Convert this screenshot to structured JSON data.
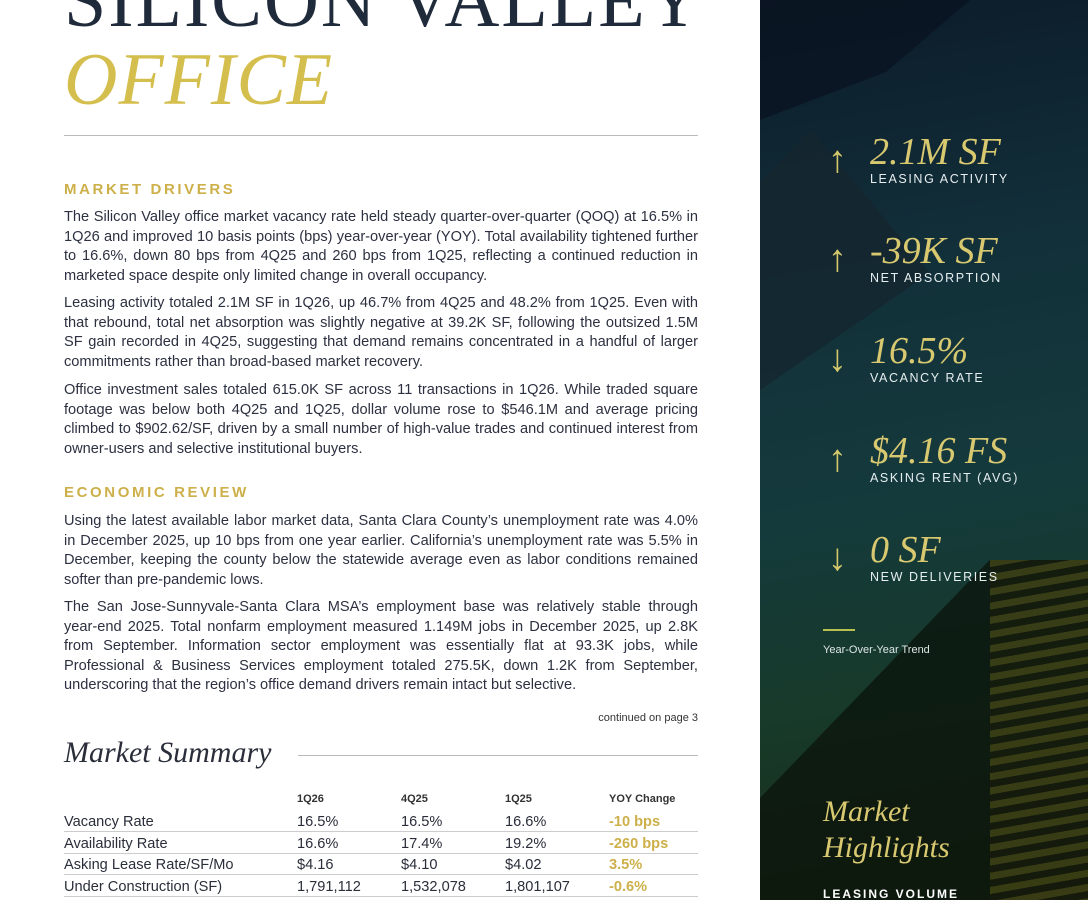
{
  "title": {
    "line1": "SILICON VALLEY",
    "line2": "OFFICE"
  },
  "sections": [
    {
      "heading": "MARKET DRIVERS",
      "paragraphs": [
        "The Silicon Valley office market vacancy rate held steady quarter-over-quarter (QOQ) at 16.5% in 1Q26 and improved 10 basis points (bps) year-over-year (YOY). Total availability tightened further to 16.6%, down 80 bps from 4Q25 and 260 bps from 1Q25, reflecting a continued reduction in marketed space despite only limited change in overall occupancy.",
        "Leasing activity totaled 2.1M SF in 1Q26, up 46.7% from 4Q25 and 48.2% from 1Q25. Even with that rebound, total net absorption was slightly negative at 39.2K SF, following the outsized 1.5M SF gain recorded in 4Q25, suggesting that demand remains concentrated in a handful of larger commitments rather than broad-based market recovery.",
        "Office investment sales totaled 615.0K SF across 11 transactions in 1Q26. While traded square footage was below both 4Q25 and 1Q25, dollar volume rose to $546.1M and average pricing climbed to $902.62/SF, driven by a small number of high-value trades and continued interest from owner-users and selective institutional buyers."
      ]
    },
    {
      "heading": "ECONOMIC REVIEW",
      "paragraphs": [
        "Using the latest available labor market data, Santa Clara County’s unemployment rate was 4.0% in December 2025, up 10 bps from one year earlier. California’s unemployment rate was 5.5% in December, keeping the county below the statewide average even as labor conditions remained softer than pre-pandemic lows.",
        "The San Jose-Sunnyvale-Santa Clara MSA’s employment base was relatively stable through year-end 2025. Total nonfarm employment measured 1.149M jobs in December 2025, up 2.8K from September. Information sector employment was essentially flat at 93.3K jobs, while Professional & Business Services employment totaled 275.5K, down 1.2K from September, underscoring that the region’s office demand drivers remain intact but selective."
      ]
    }
  ],
  "continued": "continued on page 3",
  "summary": {
    "title": "Market Summary",
    "headers": [
      "",
      "1Q26",
      "4Q25",
      "1Q25",
      "YOY Change"
    ],
    "rows": [
      [
        "Vacancy Rate",
        "16.5%",
        "16.5%",
        "16.6%",
        "-10 bps"
      ],
      [
        "Availability Rate",
        "16.6%",
        "17.4%",
        "19.2%",
        "-260 bps"
      ],
      [
        "Asking Lease Rate/SF/Mo",
        "$4.16",
        "$4.10",
        "$4.02",
        "3.5%"
      ],
      [
        "Under Construction (SF)",
        "1,791,112",
        "1,532,078",
        "1,801,107",
        "-0.6%"
      ]
    ]
  },
  "stats": [
    {
      "value": "2.1M SF",
      "label": "LEASING ACTIVITY",
      "trend": "up",
      "arrow": "↑"
    },
    {
      "value": "-39K SF",
      "label": "NET ABSORPTION",
      "trend": "up",
      "arrow": "↑"
    },
    {
      "value": "16.5%",
      "label": "VACANCY RATE",
      "trend": "down",
      "arrow": "↓"
    },
    {
      "value": "$4.16 FS",
      "label": "ASKING RENT (AVG)",
      "trend": "up",
      "arrow": "↑"
    },
    {
      "value": "0 SF",
      "label": "NEW DELIVERIES",
      "trend": "down",
      "arrow": "↓"
    }
  ],
  "trend_note": "Year-Over-Year Trend",
  "highlights": {
    "title_line1": "Market",
    "title_line2": "Highlights",
    "first_item": "LEASING VOLUME"
  },
  "colors": {
    "gold": "#cdb04a",
    "navy": "#1f2a3a",
    "panel": "#12303a"
  }
}
